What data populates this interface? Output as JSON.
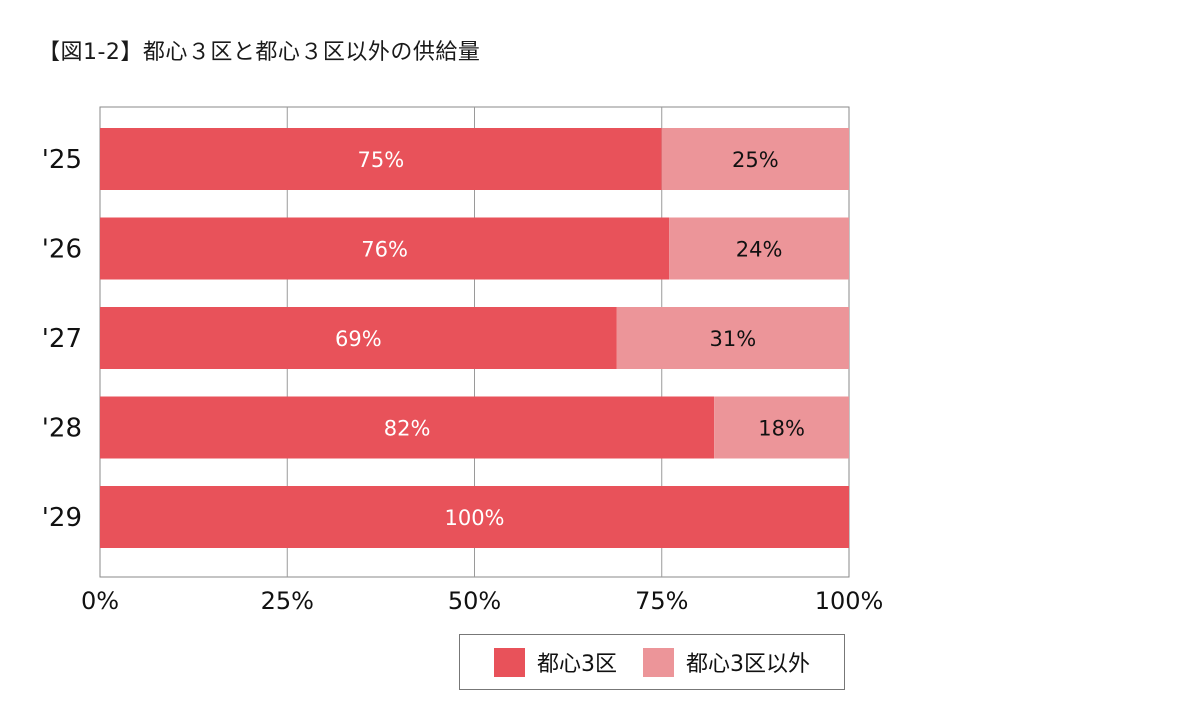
{
  "title": "【図1-2】都心３区と都心３区以外の供給量",
  "chart_data": {
    "type": "bar",
    "orientation": "horizontal",
    "stacked": true,
    "title": "【図1-2】都心３区と都心３区以外の供給量",
    "categories": [
      "'25",
      "'26",
      "'27",
      "'28",
      "'29"
    ],
    "series": [
      {
        "name": "都心3区",
        "values": [
          75,
          76,
          69,
          82,
          100
        ],
        "labels": [
          "75%",
          "76%",
          "69%",
          "82%",
          "100%"
        ],
        "color": "#e8525a",
        "label_color": "#ffffff"
      },
      {
        "name": "都心3区以外",
        "values": [
          25,
          24,
          31,
          18,
          0
        ],
        "labels": [
          "25%",
          "24%",
          "31%",
          "18%",
          ""
        ],
        "color": "#ec9599",
        "label_color": "#111111"
      }
    ],
    "xlim": [
      0,
      100
    ],
    "xticks": [
      0,
      25,
      50,
      75,
      100
    ],
    "xtick_labels": [
      "0%",
      "25%",
      "50%",
      "75%",
      "100%"
    ],
    "grid": "vertical",
    "legend": "bottom-right"
  }
}
